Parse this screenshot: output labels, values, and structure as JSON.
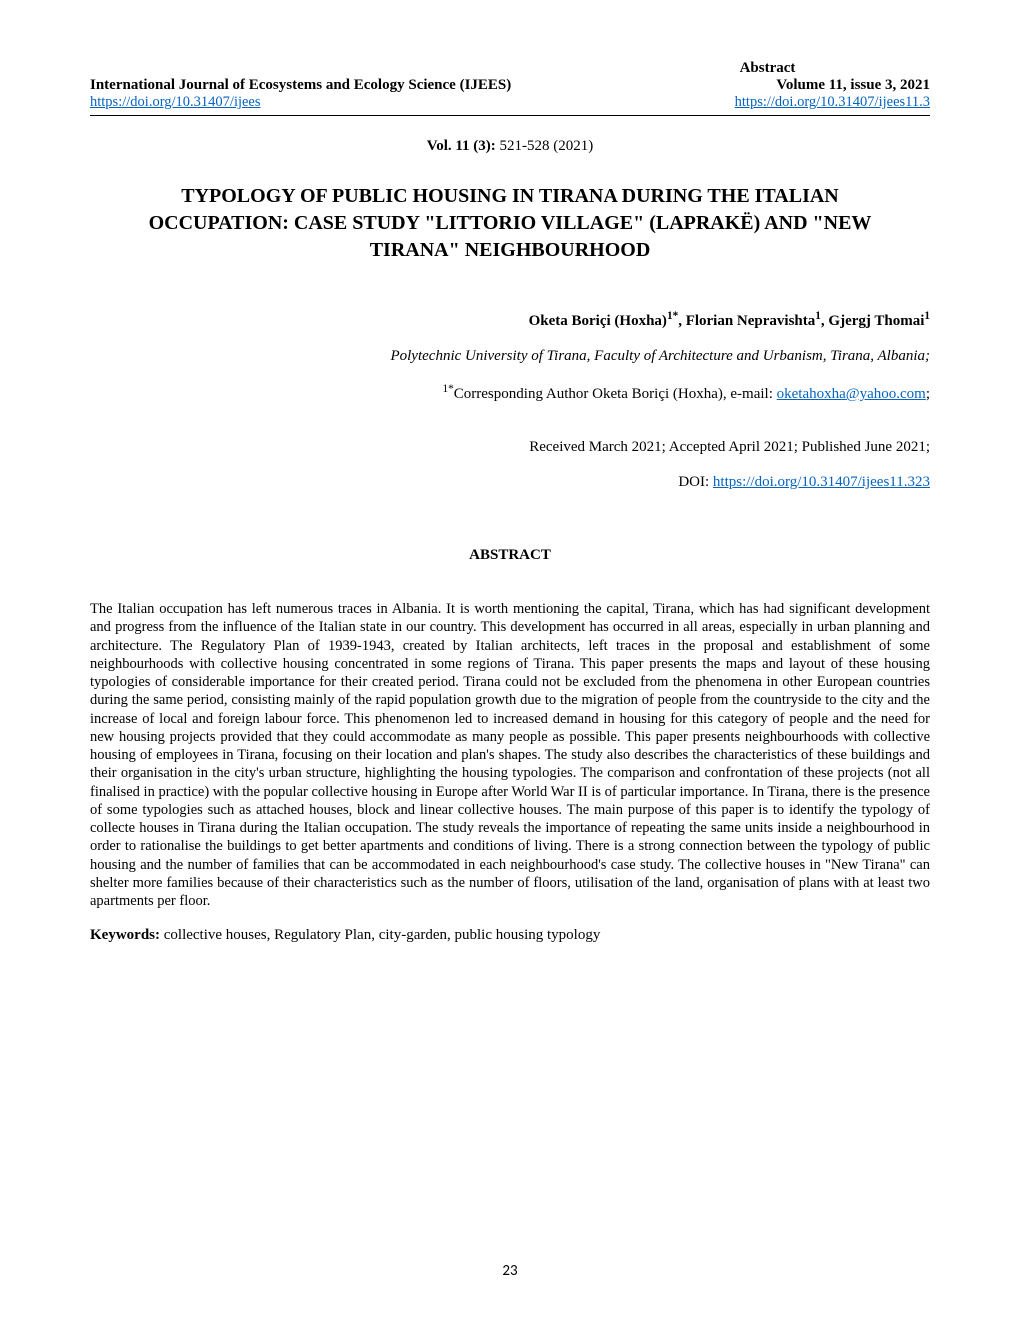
{
  "header": {
    "abstract_label": "Abstract",
    "journal_name": "International Journal of Ecosystems and Ecology Science (IJEES)",
    "volume_issue": "Volume 11, issue 3, 2021",
    "doi_left": "https://doi.org/10.31407/ijees",
    "doi_right": "https://doi.org/10.31407/ijees11.3"
  },
  "vol_info": {
    "bold": "Vol. 11 (3): ",
    "rest": "521-528 (2021)"
  },
  "title": "TYPOLOGY OF PUBLIC HOUSING IN TIRANA DURING THE ITALIAN OCCUPATION: CASE STUDY \"LITTORIO VILLAGE\" (LAPRAKË) AND \"NEW TIRANA\" NEIGHBOURHOOD",
  "authors": {
    "a1_name": "Oketa Boriçi (Hoxha)",
    "a1_sup": "1*",
    "a2_name": ", Florian Nepravishta",
    "a2_sup": "1",
    "a3_name": ", Gjergj Thomai",
    "a3_sup": "1"
  },
  "affiliation": "Polytechnic University of Tirana, Faculty of Architecture and Urbanism, Tirana, Albania;",
  "corresponding": {
    "sup": "1*",
    "text": "Corresponding Author Oketa Boriçi (Hoxha), e-mail: ",
    "email": "oketahoxha@yahoo.com",
    "trail": ";"
  },
  "received": "Received March 2021; Accepted April 2021; Published June 2021;",
  "doi_line": {
    "prefix": "DOI: ",
    "link": "https://doi.org/10.31407/ijees11.323"
  },
  "abstract_heading": "ABSTRACT",
  "abstract_body": "The Italian occupation has left numerous traces in Albania. It is worth mentioning the capital, Tirana, which has had significant development and progress from the influence of the Italian state in our country. This development has occurred in all areas, especially in urban planning and architecture. The Regulatory Plan of 1939-1943, created by Italian architects, left traces in the proposal and establishment of some neighbourhoods with collective housing concentrated in some regions of Tirana. This paper presents the maps and layout of these housing typologies of considerable importance for their created period. Tirana could not be excluded from the phenomena in other European countries during the same period, consisting mainly of the rapid population growth due to the migration of people from the countryside to the city and the increase of local and foreign labour force. This phenomenon led to increased demand in housing for this category of people and the need for new housing projects provided that they could accommodate as many people as possible. This paper presents neighbourhoods with collective housing of employees in Tirana, focusing on their location and plan's shapes. The study also describes the characteristics of these buildings and their organisation in the city's urban structure, highlighting the housing typologies. The comparison and confrontation of these projects (not all finalised in practice) with the popular collective housing in Europe after World War II is of particular importance. In Tirana, there is the presence of some typologies such as attached houses, block and linear collective houses. The main purpose of this paper is to identify the typology of collecte houses in Tirana during the Italian occupation. The study reveals the importance of repeating the same units inside a neighbourhood in order to rationalise the buildings to get better apartments and conditions of living. There is a strong connection between the typology of public housing and the number of families that can be accommodated in each neighbourhood's case study. The collective houses in \"New Tirana\" can shelter more families because of their characteristics such as the number of floors, utilisation of the land, organisation of plans with at least two apartments per floor.",
  "keywords": {
    "label": "Keywords: ",
    "text": "collective houses, Regulatory Plan, city-garden, public housing typology"
  },
  "page_number": "23",
  "colors": {
    "link": "#0563c1",
    "text": "#000000",
    "background": "#ffffff"
  },
  "fonts": {
    "body_family": "Times New Roman",
    "body_size_pt": 11,
    "title_size_pt": 15,
    "page_number_family": "Calibri"
  }
}
